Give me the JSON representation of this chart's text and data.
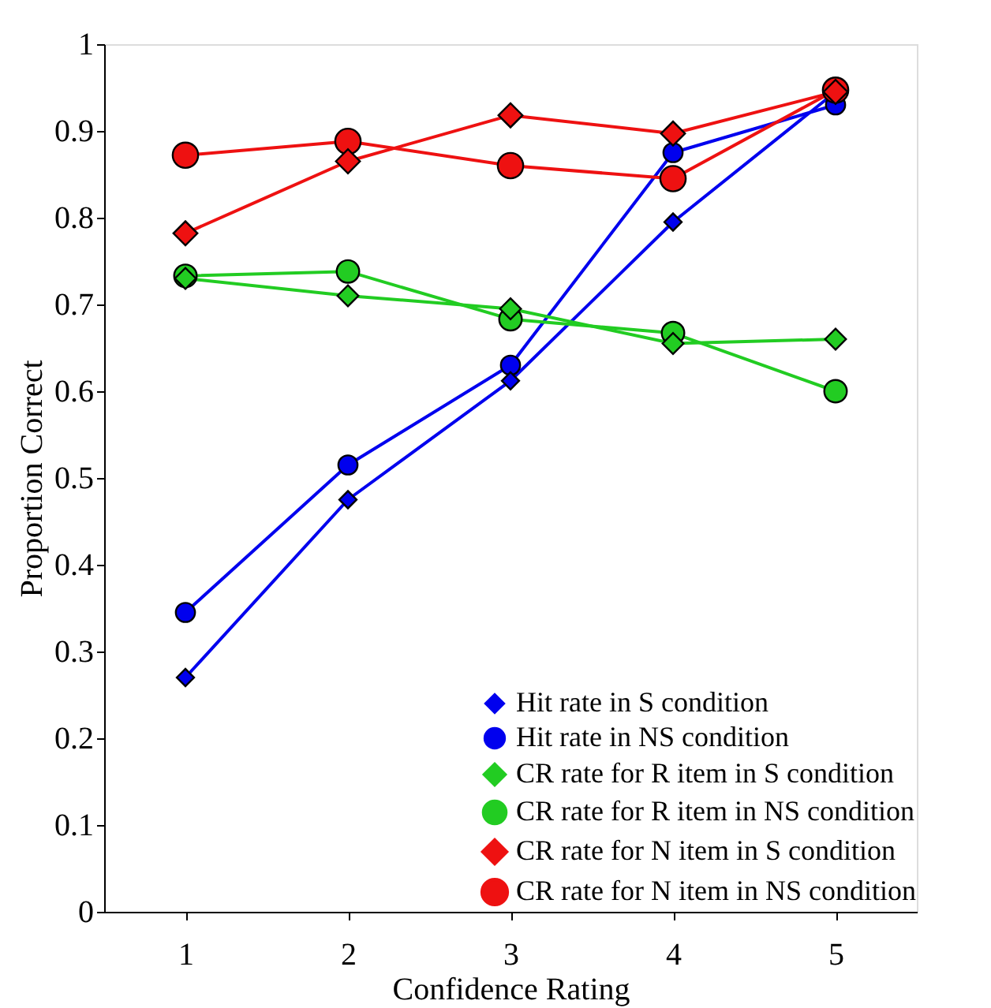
{
  "chart_data": {
    "type": "line",
    "xlabel": "Confidence Rating",
    "ylabel": "Proportion Correct",
    "x": [
      1,
      2,
      3,
      4,
      5
    ],
    "xlim": [
      0.5,
      5.5
    ],
    "xticks": [
      1,
      2,
      3,
      4,
      5
    ],
    "ylim": [
      0,
      1
    ],
    "yticks": [
      0,
      0.1,
      0.2,
      0.3,
      0.4,
      0.5,
      0.6,
      0.7,
      0.8,
      0.9,
      1
    ],
    "grid": false,
    "legend": "bottom right",
    "line_style": "solid",
    "series": [
      {
        "name": "Hit rate in S condition",
        "color": "#0000ee",
        "marker": "diamond",
        "values": [
          0.27,
          0.475,
          0.612,
          0.795,
          0.945
        ]
      },
      {
        "name": "Hit rate in NS condition",
        "color": "#0000ee",
        "marker": "circle",
        "values": [
          0.345,
          0.515,
          0.63,
          0.875,
          0.93
        ]
      },
      {
        "name": "CR rate for R item in S condition",
        "color": "#22cc22",
        "marker": "diamond",
        "values": [
          0.73,
          0.71,
          0.695,
          0.655,
          0.66
        ]
      },
      {
        "name": "CR rate for R item in NS condition",
        "color": "#22cc22",
        "marker": "circle",
        "values": [
          0.733,
          0.738,
          0.683,
          0.667,
          0.6
        ]
      },
      {
        "name": "CR rate for N item in S condition",
        "color": "#ee1111",
        "marker": "diamond",
        "values": [
          0.782,
          0.865,
          0.918,
          0.897,
          0.945
        ]
      },
      {
        "name": "CR rate for N item in NS condition",
        "color": "#ee1111",
        "marker": "circle",
        "values": [
          0.872,
          0.888,
          0.86,
          0.845,
          0.947
        ]
      }
    ]
  }
}
